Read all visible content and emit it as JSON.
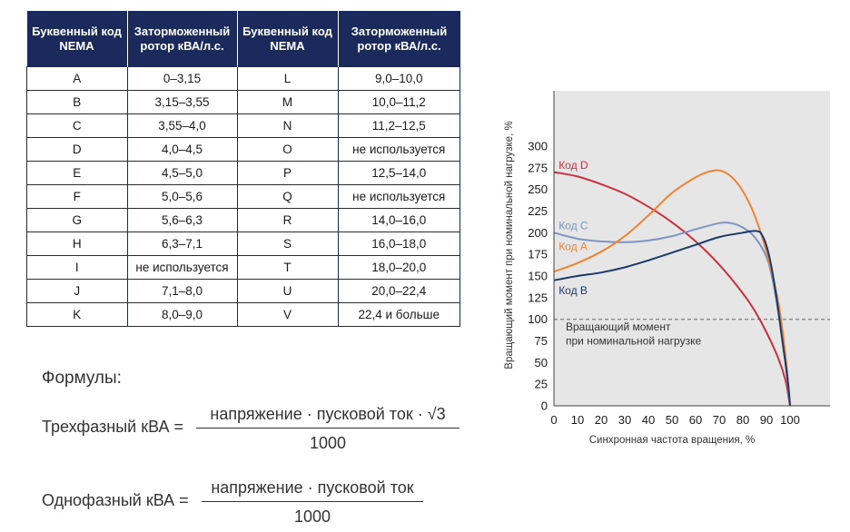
{
  "table": {
    "headers": [
      "Буквенный код NEMA",
      "Заторможенный ротор кВА/л.с.",
      "Буквенный код NEMA",
      "Заторможенный ротор кВА/л.с."
    ],
    "rows": [
      [
        "A",
        "0–3,15",
        "L",
        "9,0–10,0"
      ],
      [
        "B",
        "3,15–3,55",
        "M",
        "10,0–11,2"
      ],
      [
        "C",
        "3,55–4,0",
        "N",
        "11,2–12,5"
      ],
      [
        "D",
        "4,0–4,5",
        "O",
        "не используется"
      ],
      [
        "E",
        "4,5–5,0",
        "P",
        "12,5–14,0"
      ],
      [
        "F",
        "5,0–5,6",
        "Q",
        "не используется"
      ],
      [
        "G",
        "5,6–6,3",
        "R",
        "14,0–16,0"
      ],
      [
        "H",
        "6,3–7,1",
        "S",
        "16,0–18,0"
      ],
      [
        "I",
        "не используется",
        "T",
        "18,0–20,0"
      ],
      [
        "J",
        "7,1–8,0",
        "U",
        "20,0–22,4"
      ],
      [
        "K",
        "8,0–9,0",
        "V",
        "22,4 и больше"
      ]
    ]
  },
  "formulas": {
    "label": "Формулы:",
    "three_phase": {
      "name": "Трехфазный кВА =",
      "numerator": "напряжение · пусковой ток · √3",
      "denominator": "1000"
    },
    "single_phase": {
      "name": "Однофазный кВА =",
      "numerator": "напряжение · пусковой ток",
      "denominator": "1000"
    }
  },
  "chart_data": {
    "type": "line",
    "xlabel": "Синхронная частота вращения, %",
    "ylabel": "Вращающий момент при номинальной нагрузке, %",
    "xlim": [
      0,
      100
    ],
    "ylim": [
      0,
      300
    ],
    "xticks": [
      0,
      10,
      20,
      30,
      40,
      50,
      60,
      70,
      80,
      90,
      100
    ],
    "yticks": [
      0,
      25,
      50,
      75,
      100,
      125,
      150,
      175,
      200,
      225,
      250,
      275,
      300
    ],
    "reference_line": {
      "y": 100,
      "label_line1": "Вращающий момент",
      "label_line2": "при номинальной нагрузке",
      "color": "#888888"
    },
    "background": "#e6e6e6",
    "series": [
      {
        "name": "Код D",
        "color": "#c8323c",
        "x": [
          0,
          10,
          20,
          30,
          40,
          50,
          60,
          70,
          80,
          85,
          90,
          95,
          98,
          100
        ],
        "y": [
          270,
          265,
          256,
          245,
          230,
          212,
          190,
          163,
          130,
          110,
          85,
          55,
          30,
          0
        ]
      },
      {
        "name": "Код C",
        "color": "#7b96c4",
        "x": [
          0,
          10,
          20,
          30,
          40,
          50,
          60,
          70,
          75,
          80,
          85,
          90,
          93,
          96,
          98,
          100
        ],
        "y": [
          200,
          193,
          190,
          189,
          191,
          196,
          204,
          211,
          211,
          206,
          195,
          172,
          140,
          90,
          50,
          0
        ]
      },
      {
        "name": "Код A",
        "color": "#f28230",
        "x": [
          0,
          10,
          20,
          30,
          40,
          50,
          60,
          65,
          70,
          75,
          80,
          85,
          90,
          95,
          98,
          100
        ],
        "y": [
          155,
          165,
          178,
          196,
          220,
          246,
          264,
          270,
          272,
          265,
          248,
          220,
          178,
          120,
          60,
          0
        ]
      },
      {
        "name": "Код B",
        "color": "#1b3a6c",
        "x": [
          0,
          10,
          20,
          30,
          40,
          50,
          60,
          70,
          80,
          85,
          88,
          91,
          94,
          97,
          99,
          100
        ],
        "y": [
          145,
          150,
          154,
          160,
          168,
          177,
          186,
          195,
          200,
          202,
          198,
          175,
          130,
          70,
          30,
          0
        ]
      }
    ],
    "series_labels": [
      {
        "name": "Код D",
        "x": 2,
        "y": 278
      },
      {
        "name": "Код C",
        "x": 2,
        "y": 208
      },
      {
        "name": "Код A",
        "x": 2,
        "y": 184
      },
      {
        "name": "Код B",
        "x": 2,
        "y": 133
      }
    ]
  }
}
